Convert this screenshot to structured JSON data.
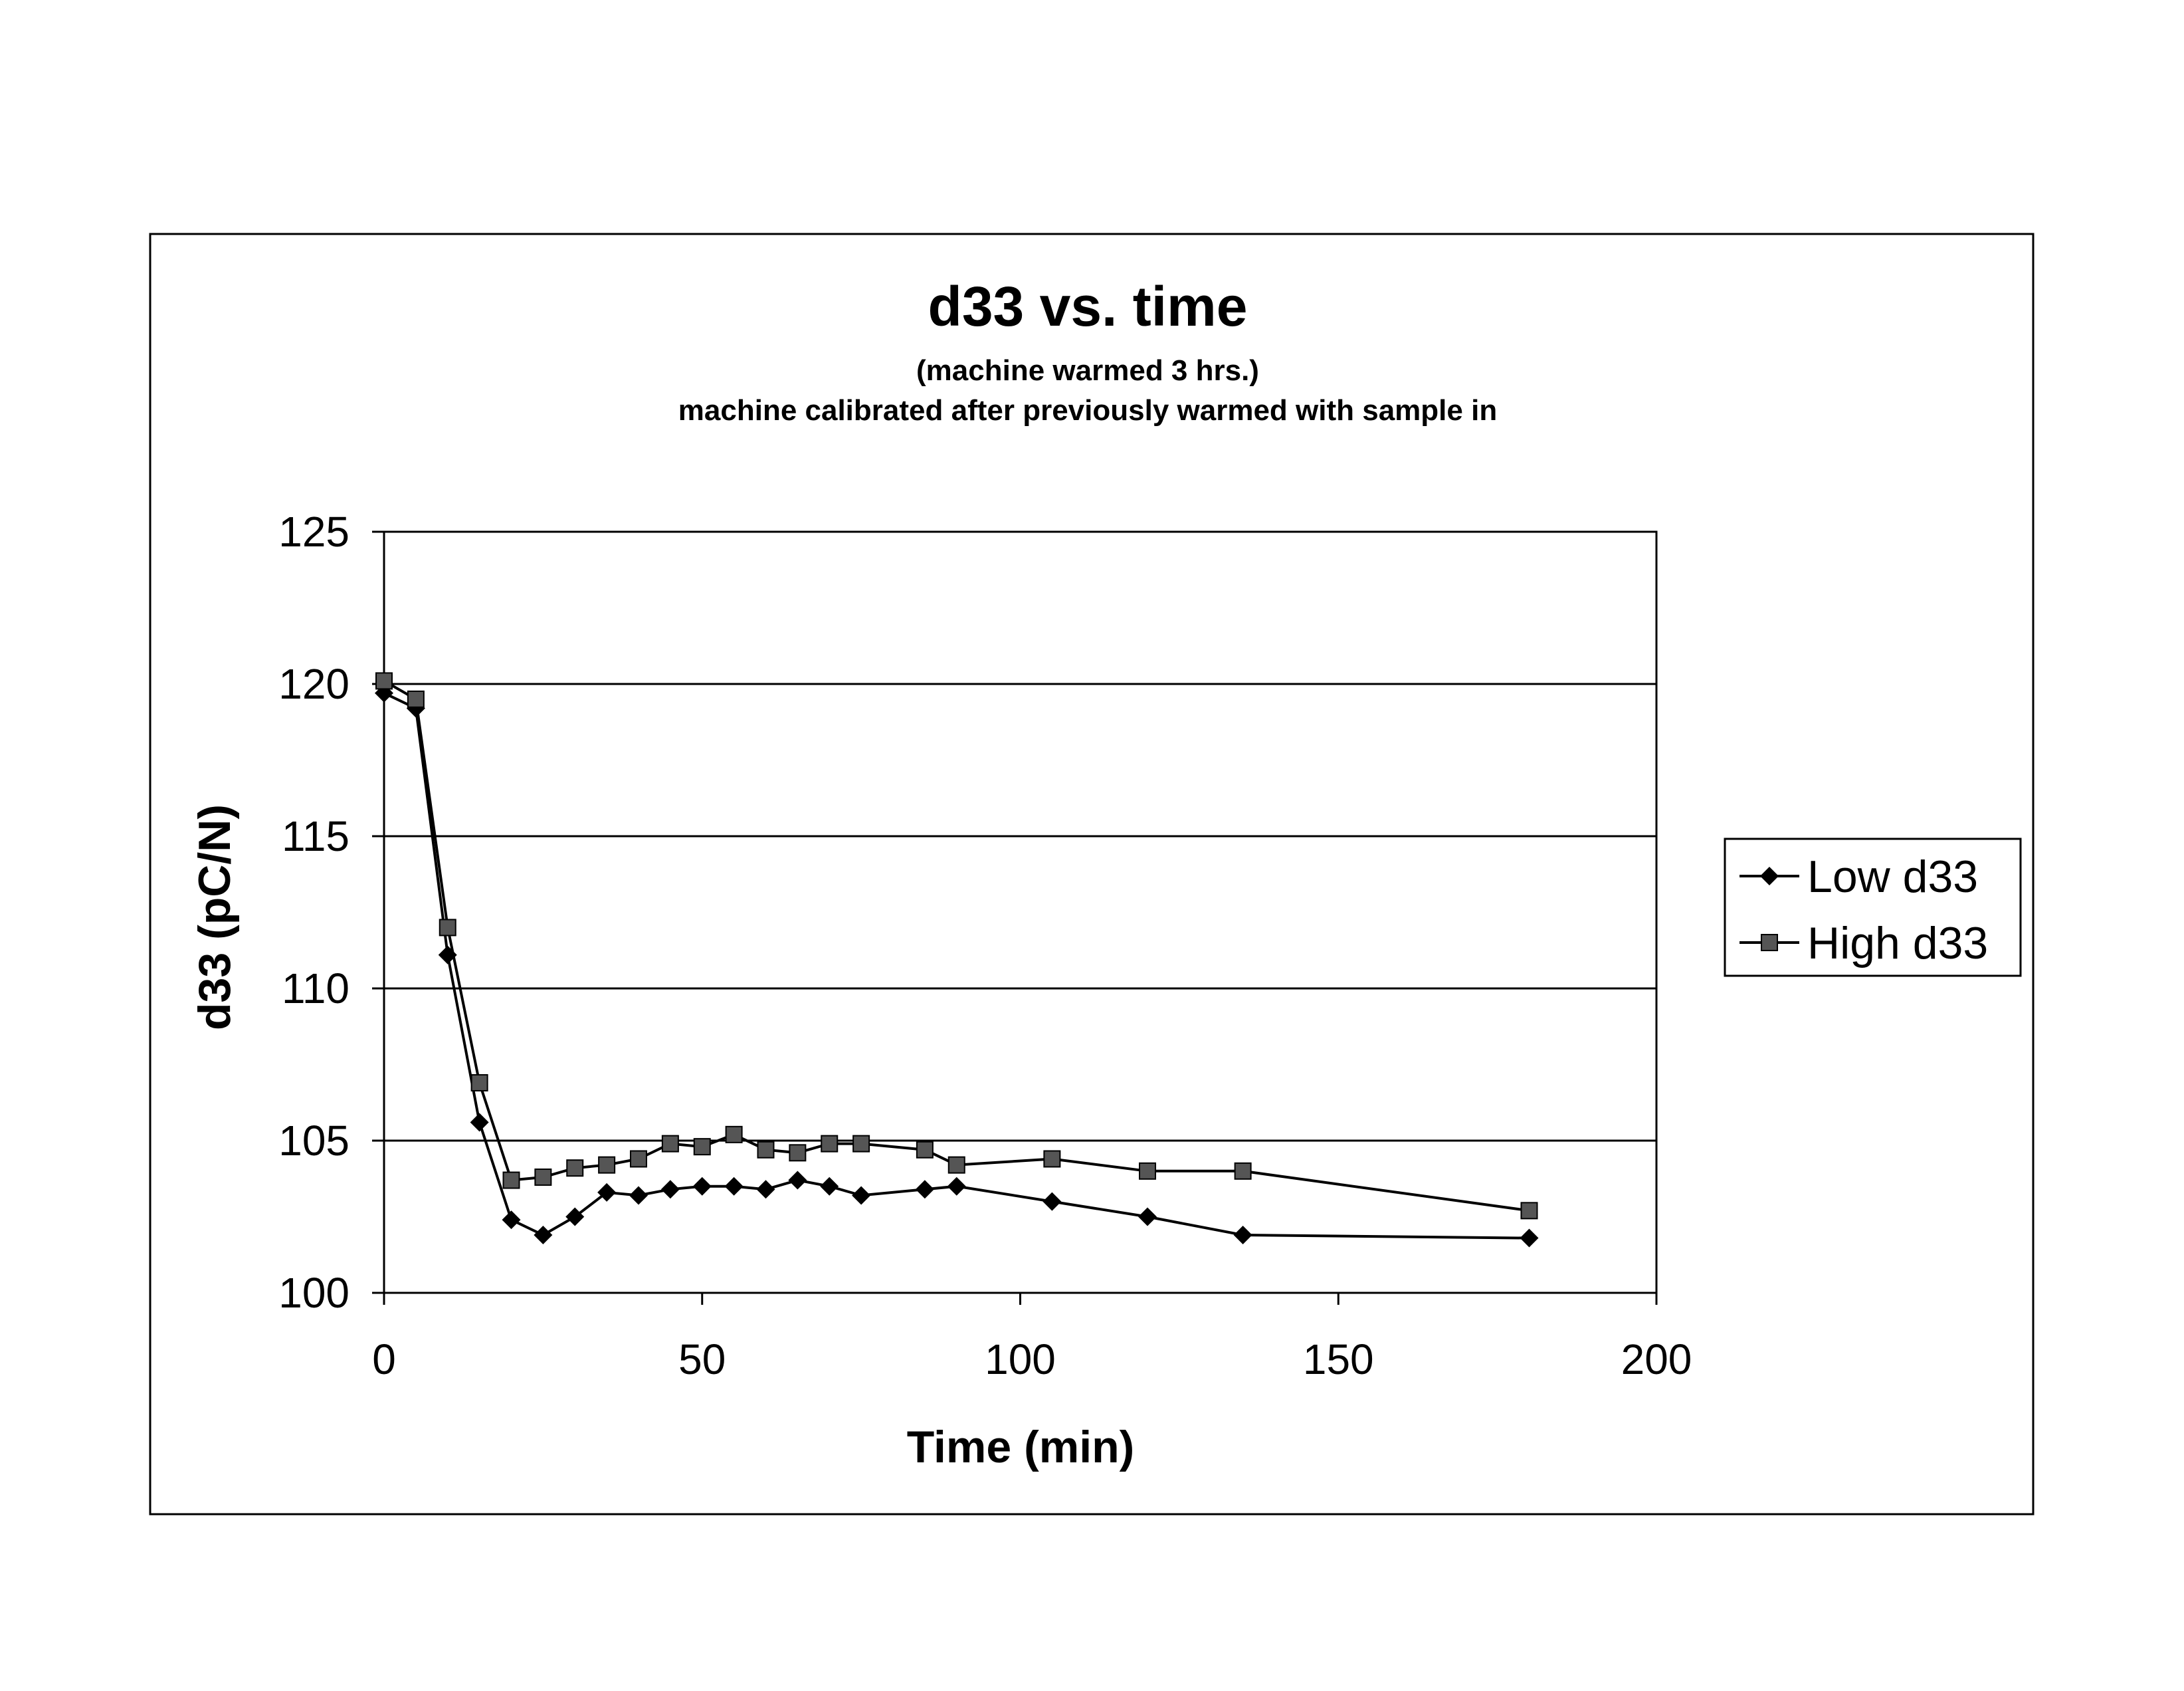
{
  "chart_data": {
    "type": "line",
    "title": "d33 vs. time",
    "subtitle_1": "(machine warmed 3 hrs.)",
    "subtitle_2": "machine calibrated after previously warmed with sample in",
    "xlabel": "Time (min)",
    "ylabel": "d33 (pC/N)",
    "xlim": [
      0,
      200
    ],
    "ylim": [
      100,
      125
    ],
    "xticks": [
      "0",
      "50",
      "100",
      "150",
      "200"
    ],
    "yticks": [
      "100",
      "105",
      "110",
      "115",
      "120",
      "125"
    ],
    "grid": "horizontal",
    "legend_position": "right",
    "series": [
      {
        "name": "Low d33",
        "marker": "diamond",
        "x": [
          0,
          5,
          10,
          15,
          20,
          25,
          30,
          35,
          40,
          45,
          50,
          55,
          60,
          65,
          70,
          75,
          85,
          90,
          105,
          120,
          135,
          180
        ],
        "values": [
          119.7,
          119.2,
          111.1,
          105.6,
          102.4,
          101.9,
          102.5,
          103.3,
          103.2,
          103.4,
          103.5,
          103.5,
          103.4,
          103.7,
          103.5,
          103.2,
          103.4,
          103.5,
          103.0,
          102.5,
          101.9,
          101.8
        ]
      },
      {
        "name": "High d33",
        "marker": "square",
        "x": [
          0,
          5,
          10,
          15,
          20,
          25,
          30,
          35,
          40,
          45,
          50,
          55,
          60,
          65,
          70,
          75,
          85,
          90,
          105,
          120,
          135,
          180
        ],
        "values": [
          120.1,
          119.5,
          112.0,
          106.9,
          103.7,
          103.8,
          104.1,
          104.2,
          104.4,
          104.9,
          104.8,
          105.2,
          104.7,
          104.6,
          104.9,
          104.9,
          104.7,
          104.2,
          104.4,
          104.0,
          104.0,
          102.7
        ]
      }
    ]
  },
  "colors": {
    "background": "#ffffff",
    "lines": "#000000",
    "low_marker": "#000000",
    "high_marker": "#555555"
  }
}
